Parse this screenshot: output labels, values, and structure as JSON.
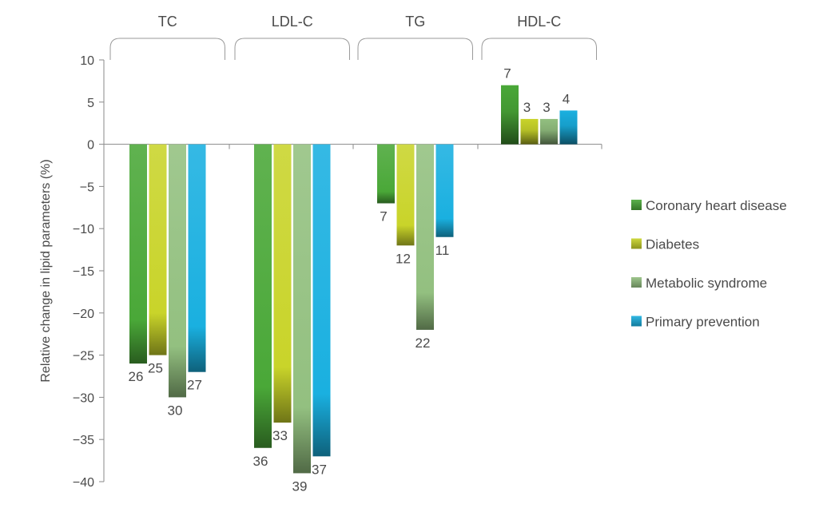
{
  "chart_data": {
    "type": "bar",
    "categories": [
      "TC",
      "LDL-C",
      "TG",
      "HDL-C"
    ],
    "ylabel": "Relative change in lipid parameters (%)",
    "ylim": [
      -40,
      10
    ],
    "yticks": [
      10,
      5,
      0,
      -5,
      -10,
      -15,
      -20,
      -25,
      -30,
      -35,
      -40
    ],
    "ytick_labels": [
      "10",
      "5",
      "0",
      "−5",
      "−10",
      "−15",
      "−20",
      "−25",
      "−30",
      "−35",
      "−40"
    ],
    "legend_position": "right",
    "series": [
      {
        "name": "Coronary heart disease",
        "color": "#4aa838",
        "values": [
          -26,
          -36,
          -7,
          7
        ],
        "labels": [
          "26",
          "36",
          "7",
          "7"
        ]
      },
      {
        "name": "Diabetes",
        "color": "#c9d42a",
        "values": [
          -25,
          -33,
          -12,
          3
        ],
        "labels": [
          "25",
          "33",
          "12",
          "3"
        ]
      },
      {
        "name": "Metabolic syndrome",
        "color": "#93c080",
        "values": [
          -30,
          -39,
          -22,
          3
        ],
        "labels": [
          "30",
          "39",
          "22",
          "3"
        ]
      },
      {
        "name": "Primary prevention",
        "color": "#1ab0e0",
        "values": [
          -27,
          -37,
          -11,
          4
        ],
        "labels": [
          "27",
          "37",
          "11",
          "4"
        ]
      }
    ]
  }
}
